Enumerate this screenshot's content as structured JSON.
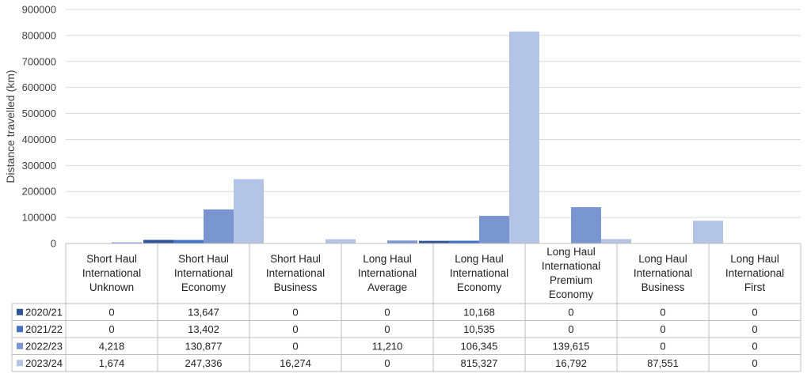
{
  "chart_data": {
    "type": "bar",
    "ylabel": "Distance travelled (km)",
    "ylim": [
      0,
      900000
    ],
    "yticks": [
      "0",
      "100000",
      "200000",
      "300000",
      "400000",
      "500000",
      "600000",
      "700000",
      "800000",
      "900000"
    ],
    "grid": true,
    "legend_placement": "data-table-left",
    "categories": [
      [
        "Short Haul",
        "International",
        "Unknown"
      ],
      [
        "Short Haul",
        "International",
        "Economy"
      ],
      [
        "Short Haul",
        "International",
        "Business"
      ],
      [
        "Long Haul",
        "International",
        "Average"
      ],
      [
        "Long Haul",
        "International",
        "Economy"
      ],
      [
        "Long Haul",
        "International",
        "Premium",
        "Economy"
      ],
      [
        "Long Haul",
        "International",
        "Business"
      ],
      [
        "Long Haul",
        "International",
        "First"
      ]
    ],
    "series": [
      {
        "name": "2020/21",
        "color": "#2f5597",
        "values": [
          0,
          13647,
          0,
          0,
          10168,
          0,
          0,
          0
        ],
        "labels": [
          "0",
          "13,647",
          "0",
          "0",
          "10,168",
          "0",
          "0",
          "0"
        ]
      },
      {
        "name": "2021/22",
        "color": "#4472c4",
        "values": [
          0,
          13402,
          0,
          0,
          10535,
          0,
          0,
          0
        ],
        "labels": [
          "0",
          "13,402",
          "0",
          "0",
          "10,535",
          "0",
          "0",
          "0"
        ]
      },
      {
        "name": "2022/23",
        "color": "#7a96d0",
        "values": [
          4218,
          130877,
          0,
          11210,
          106345,
          139615,
          0,
          0
        ],
        "labels": [
          "4,218",
          "130,877",
          "0",
          "11,210",
          "106,345",
          "139,615",
          "0",
          "0"
        ]
      },
      {
        "name": "2023/24",
        "color": "#b4c4e6",
        "values": [
          1674,
          247336,
          16274,
          0,
          815327,
          16792,
          87551,
          0
        ],
        "labels": [
          "1,674",
          "247,336",
          "16,274",
          "0",
          "815,327",
          "16,792",
          "87,551",
          "0"
        ]
      }
    ]
  }
}
